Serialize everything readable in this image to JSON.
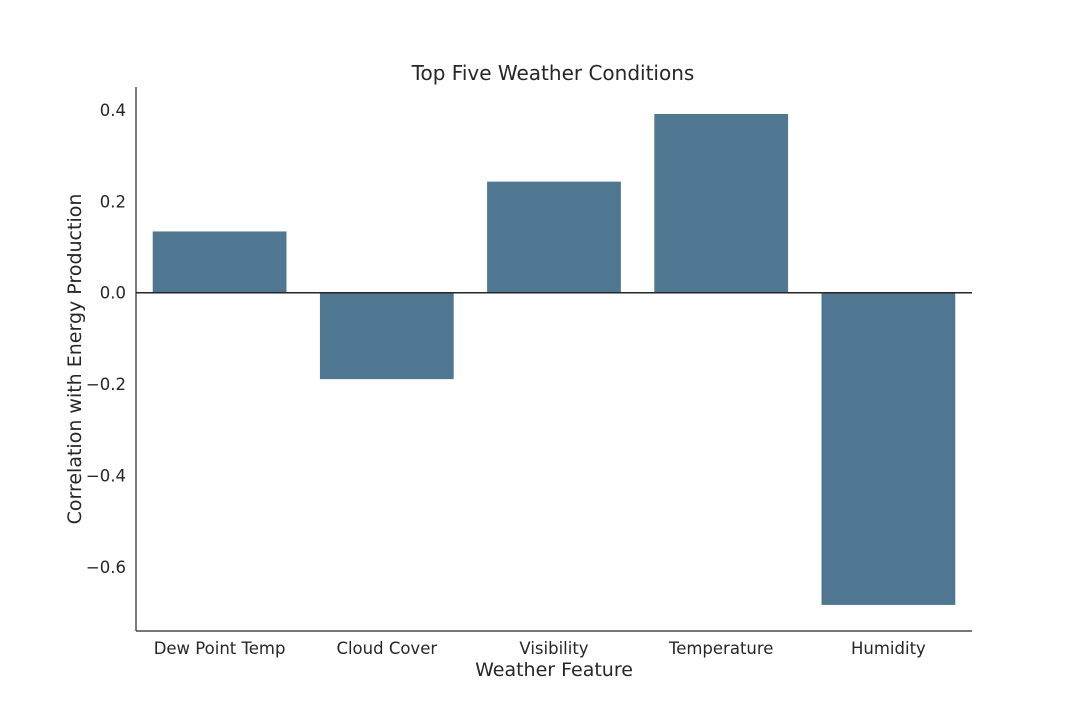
{
  "chart_data": {
    "type": "bar",
    "title": "Top Five Weather Conditions",
    "xlabel": "Weather Feature",
    "ylabel": "Correlation with Energy Production",
    "categories": [
      "Dew Point Temp",
      "Cloud Cover",
      "Visibility",
      "Temperature",
      "Humidity"
    ],
    "values": [
      0.134,
      -0.189,
      0.243,
      0.391,
      -0.683
    ],
    "ylim": [
      -0.74,
      0.45
    ],
    "yticks": [
      0.4,
      0.2,
      0.0,
      -0.2,
      -0.4,
      -0.6
    ],
    "ytick_labels": [
      "0.4",
      "0.2",
      "0.0",
      "−0.2",
      "−0.4",
      "−0.6"
    ],
    "bar_color": "#4f7791",
    "zero_line": true,
    "grid": false,
    "legend": "none"
  }
}
